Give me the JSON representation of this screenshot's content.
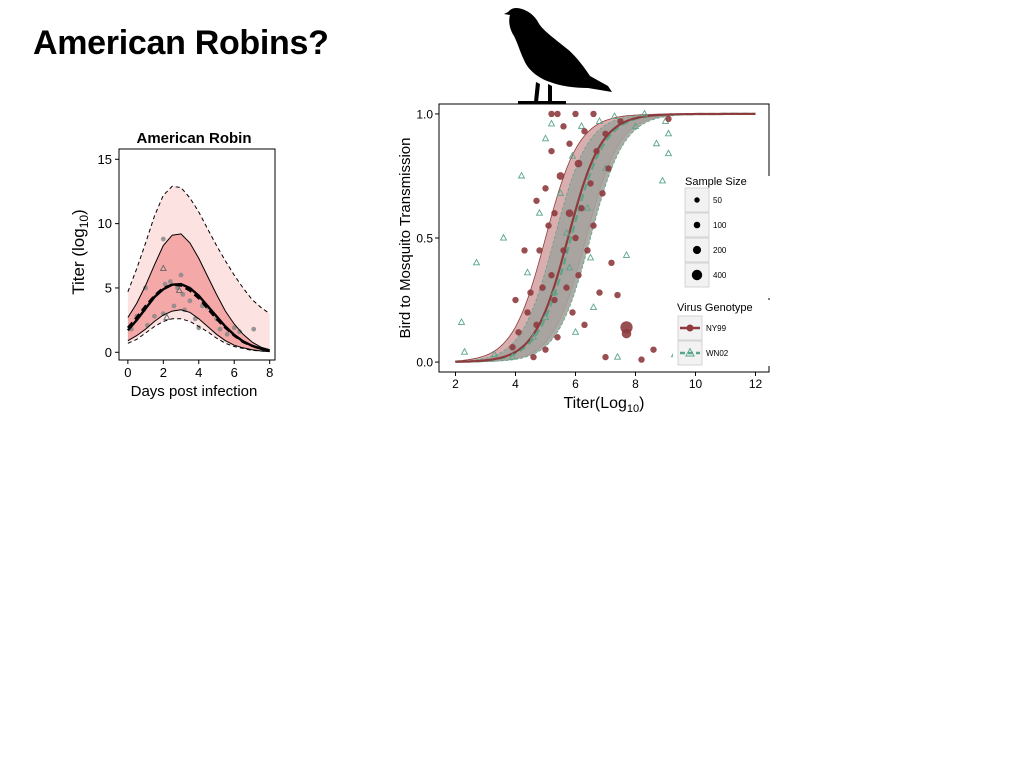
{
  "slide": {
    "title": "American Robins?",
    "bird_icon": "robin-silhouette-icon"
  },
  "chart_data": [
    {
      "type": "line",
      "title": "American Robin",
      "xlabel": "Days post infection",
      "ylabel": "Titer (log",
      "ylabel_sub": "10",
      "ylabel_close": ")",
      "xlim": [
        -0.5,
        8.3
      ],
      "ylim": [
        -0.6,
        15.8
      ],
      "xticks": [
        0,
        2,
        4,
        6,
        8
      ],
      "yticks": [
        0,
        5,
        10,
        15
      ],
      "grid": false,
      "colors": {
        "outer_band": "#fde2e2",
        "inner_band": "#f4a8a8",
        "points": "#888888",
        "line": "#000000"
      },
      "x": [
        0,
        0.5,
        1,
        1.5,
        2,
        2.5,
        3,
        3.5,
        4,
        4.5,
        5,
        5.5,
        6,
        6.5,
        7,
        7.5,
        8
      ],
      "series": [
        {
          "role": "outer_upper",
          "values": [
            4.7,
            6.5,
            8.5,
            10.6,
            12.2,
            12.9,
            12.8,
            12.0,
            10.9,
            9.6,
            8.3,
            7.1,
            6.0,
            5.0,
            4.1,
            3.5,
            3.0
          ]
        },
        {
          "role": "outer_lower",
          "values": [
            0.7,
            1.0,
            1.5,
            2.0,
            2.4,
            2.6,
            2.6,
            2.4,
            2.0,
            1.6,
            1.1,
            0.7,
            0.45,
            0.3,
            0.15,
            0.1,
            0.05
          ]
        },
        {
          "role": "inner_upper",
          "values": [
            2.7,
            3.8,
            5.2,
            6.8,
            8.3,
            9.1,
            9.2,
            8.5,
            7.3,
            5.9,
            4.5,
            3.2,
            2.2,
            1.4,
            0.8,
            0.4,
            0.2
          ]
        },
        {
          "role": "inner_lower",
          "values": [
            0.9,
            1.3,
            1.8,
            2.4,
            2.9,
            3.2,
            3.3,
            3.1,
            2.6,
            2.0,
            1.4,
            0.9,
            0.55,
            0.35,
            0.2,
            0.1,
            0.05
          ]
        },
        {
          "role": "median",
          "values": [
            1.7,
            2.5,
            3.4,
            4.3,
            4.9,
            5.25,
            5.3,
            5.0,
            4.4,
            3.6,
            2.8,
            2.0,
            1.35,
            0.85,
            0.5,
            0.28,
            0.15
          ]
        },
        {
          "role": "median_dashed",
          "values": [
            1.9,
            2.7,
            3.6,
            4.4,
            5.0,
            5.25,
            5.2,
            4.8,
            4.2,
            3.4,
            2.6,
            1.9,
            1.3,
            0.8,
            0.5,
            0.28,
            0.15
          ]
        }
      ],
      "points": [
        {
          "x": 0.2,
          "y": 1.8
        },
        {
          "x": 0.5,
          "y": 2.8
        },
        {
          "x": 0.9,
          "y": 3.3
        },
        {
          "x": 1.0,
          "y": 5.0
        },
        {
          "x": 1.1,
          "y": 2.1
        },
        {
          "x": 1.5,
          "y": 2.8
        },
        {
          "x": 2.0,
          "y": 3.0
        },
        {
          "x": 2.0,
          "y": 8.8
        },
        {
          "x": 2.1,
          "y": 5.3
        },
        {
          "x": 2.4,
          "y": 5.5
        },
        {
          "x": 2.6,
          "y": 3.6
        },
        {
          "x": 2.8,
          "y": 5.0
        },
        {
          "x": 3.0,
          "y": 6.0
        },
        {
          "x": 3.1,
          "y": 4.5
        },
        {
          "x": 3.2,
          "y": 3.3
        },
        {
          "x": 3.5,
          "y": 4.0
        },
        {
          "x": 3.8,
          "y": 2.6
        },
        {
          "x": 4.0,
          "y": 1.9
        },
        {
          "x": 4.2,
          "y": 3.6
        },
        {
          "x": 4.5,
          "y": 3.5
        },
        {
          "x": 5.0,
          "y": 2.6
        },
        {
          "x": 5.2,
          "y": 1.8
        },
        {
          "x": 5.6,
          "y": 1.4
        },
        {
          "x": 6.0,
          "y": 1.9
        },
        {
          "x": 6.3,
          "y": 1.6
        },
        {
          "x": 7.1,
          "y": 1.8
        }
      ],
      "triangles": [
        {
          "x": 2.0,
          "y": 6.5
        },
        {
          "x": 2.9,
          "y": 4.8
        },
        {
          "x": 2.2,
          "y": 2.7
        }
      ]
    },
    {
      "type": "scatter",
      "xlabel": "Titer(Log",
      "xlabel_sub": "10",
      "xlabel_close": ")",
      "ylabel": "Bird to Mosquito Transmission",
      "xlim": [
        1.45,
        12.45
      ],
      "ylim": [
        -0.04,
        1.04
      ],
      "xticks": [
        2,
        4,
        6,
        8,
        10,
        12
      ],
      "yticks": [
        0.0,
        0.5,
        1.0
      ],
      "ytick_labels": [
        "0.0",
        "0.5",
        "1.0"
      ],
      "grid": false,
      "colors": {
        "ny99": "#8e3b3e",
        "wn02": "#5aa589",
        "band_ny99": "#d9aeae",
        "band_overlap": "#a3a39d",
        "band_wn02": "#a7c7b6"
      },
      "curves": {
        "ny99": {
          "midpoint": 5.75,
          "slope": 1.8
        },
        "wn02": {
          "midpoint": 5.85,
          "slope": 1.8
        },
        "ny99_band": {
          "upper_midpoint": 5.0,
          "lower_midpoint": 6.35,
          "slope": 1.8
        },
        "wn02_band": {
          "upper_midpoint": 5.3,
          "lower_midpoint": 6.5,
          "slope": 1.8
        }
      },
      "legend_size": {
        "title": "Sample Size",
        "placement": "right",
        "entries": [
          {
            "label": "50",
            "n": 50
          },
          {
            "label": "100",
            "n": 100
          },
          {
            "label": "200",
            "n": 200
          },
          {
            "label": "400",
            "n": 400
          }
        ]
      },
      "legend_genotype": {
        "title": "Virus Genotype",
        "placement": "right",
        "entries": [
          {
            "label": "NY99",
            "style": "solid"
          },
          {
            "label": "WN02",
            "style": "dashed"
          }
        ]
      },
      "points_ny99": [
        {
          "x": 3.9,
          "y": 0.06,
          "n": 50
        },
        {
          "x": 4.1,
          "y": 0.12,
          "n": 50
        },
        {
          "x": 4.4,
          "y": 0.2,
          "n": 50
        },
        {
          "x": 4.5,
          "y": 0.28,
          "n": 50
        },
        {
          "x": 4.6,
          "y": 0.02,
          "n": 50
        },
        {
          "x": 4.7,
          "y": 0.15,
          "n": 50
        },
        {
          "x": 4.7,
          "y": 0.65,
          "n": 50
        },
        {
          "x": 4.8,
          "y": 0.45,
          "n": 50
        },
        {
          "x": 4.9,
          "y": 0.3,
          "n": 50
        },
        {
          "x": 5.0,
          "y": 0.05,
          "n": 50
        },
        {
          "x": 5.0,
          "y": 0.7,
          "n": 50
        },
        {
          "x": 5.1,
          "y": 0.55,
          "n": 50
        },
        {
          "x": 5.2,
          "y": 0.35,
          "n": 50
        },
        {
          "x": 5.2,
          "y": 0.85,
          "n": 50
        },
        {
          "x": 5.3,
          "y": 0.25,
          "n": 50
        },
        {
          "x": 5.3,
          "y": 0.6,
          "n": 50
        },
        {
          "x": 5.4,
          "y": 1.0,
          "n": 50
        },
        {
          "x": 5.4,
          "y": 0.1,
          "n": 50
        },
        {
          "x": 5.5,
          "y": 0.75,
          "n": 100
        },
        {
          "x": 5.6,
          "y": 0.45,
          "n": 50
        },
        {
          "x": 5.6,
          "y": 0.95,
          "n": 50
        },
        {
          "x": 5.7,
          "y": 0.3,
          "n": 50
        },
        {
          "x": 5.8,
          "y": 0.6,
          "n": 100
        },
        {
          "x": 5.8,
          "y": 0.88,
          "n": 50
        },
        {
          "x": 5.9,
          "y": 0.2,
          "n": 50
        },
        {
          "x": 6.0,
          "y": 0.5,
          "n": 50
        },
        {
          "x": 6.0,
          "y": 1.0,
          "n": 50
        },
        {
          "x": 6.1,
          "y": 0.8,
          "n": 100
        },
        {
          "x": 6.1,
          "y": 0.35,
          "n": 50
        },
        {
          "x": 6.2,
          "y": 0.62,
          "n": 50
        },
        {
          "x": 6.3,
          "y": 0.93,
          "n": 50
        },
        {
          "x": 6.3,
          "y": 0.15,
          "n": 50
        },
        {
          "x": 6.4,
          "y": 0.45,
          "n": 50
        },
        {
          "x": 6.5,
          "y": 0.72,
          "n": 50
        },
        {
          "x": 6.6,
          "y": 0.55,
          "n": 50
        },
        {
          "x": 6.6,
          "y": 1.0,
          "n": 50
        },
        {
          "x": 6.7,
          "y": 0.85,
          "n": 50
        },
        {
          "x": 6.8,
          "y": 0.28,
          "n": 50
        },
        {
          "x": 6.9,
          "y": 0.68,
          "n": 50
        },
        {
          "x": 7.0,
          "y": 0.92,
          "n": 50
        },
        {
          "x": 7.1,
          "y": 0.78,
          "n": 50
        },
        {
          "x": 7.2,
          "y": 0.4,
          "n": 50
        },
        {
          "x": 7.4,
          "y": 0.27,
          "n": 50
        },
        {
          "x": 7.5,
          "y": 0.97,
          "n": 50
        },
        {
          "x": 7.7,
          "y": 0.14,
          "n": 400
        },
        {
          "x": 7.7,
          "y": 0.115,
          "n": 200
        },
        {
          "x": 8.2,
          "y": 0.01,
          "n": 50
        },
        {
          "x": 8.6,
          "y": 0.05,
          "n": 50
        },
        {
          "x": 5.2,
          "y": 1.0,
          "n": 50
        },
        {
          "x": 7.0,
          "y": 0.02,
          "n": 50
        },
        {
          "x": 4.3,
          "y": 0.45,
          "n": 50
        },
        {
          "x": 4.0,
          "y": 0.25,
          "n": 50
        },
        {
          "x": 9.1,
          "y": 0.98,
          "n": 50
        }
      ],
      "points_wn02": [
        {
          "x": 2.2,
          "y": 0.16
        },
        {
          "x": 2.3,
          "y": 0.04
        },
        {
          "x": 2.7,
          "y": 0.4
        },
        {
          "x": 3.3,
          "y": 0.03
        },
        {
          "x": 3.6,
          "y": 0.5
        },
        {
          "x": 3.9,
          "y": 0.02
        },
        {
          "x": 4.2,
          "y": 0.75
        },
        {
          "x": 4.4,
          "y": 0.36
        },
        {
          "x": 4.6,
          "y": 0.1
        },
        {
          "x": 4.8,
          "y": 0.6
        },
        {
          "x": 5.0,
          "y": 0.9
        },
        {
          "x": 5.2,
          "y": 0.96
        },
        {
          "x": 5.3,
          "y": 0.28
        },
        {
          "x": 5.5,
          "y": 0.68
        },
        {
          "x": 5.7,
          "y": 0.52
        },
        {
          "x": 5.9,
          "y": 0.83
        },
        {
          "x": 6.0,
          "y": 0.12
        },
        {
          "x": 6.2,
          "y": 0.95
        },
        {
          "x": 6.4,
          "y": 0.62
        },
        {
          "x": 6.5,
          "y": 0.42
        },
        {
          "x": 6.8,
          "y": 0.97
        },
        {
          "x": 7.0,
          "y": 0.78
        },
        {
          "x": 7.3,
          "y": 0.99
        },
        {
          "x": 7.7,
          "y": 0.43
        },
        {
          "x": 8.0,
          "y": 0.95
        },
        {
          "x": 8.3,
          "y": 1.0
        },
        {
          "x": 8.7,
          "y": 0.88
        },
        {
          "x": 8.9,
          "y": 0.73
        },
        {
          "x": 9.1,
          "y": 0.84
        },
        {
          "x": 9.1,
          "y": 0.92
        },
        {
          "x": 9.0,
          "y": 0.97
        },
        {
          "x": 9.3,
          "y": 0.03
        },
        {
          "x": 7.4,
          "y": 0.02
        },
        {
          "x": 6.6,
          "y": 0.22
        },
        {
          "x": 5.8,
          "y": 0.38
        },
        {
          "x": 5.0,
          "y": 0.18
        }
      ]
    }
  ]
}
